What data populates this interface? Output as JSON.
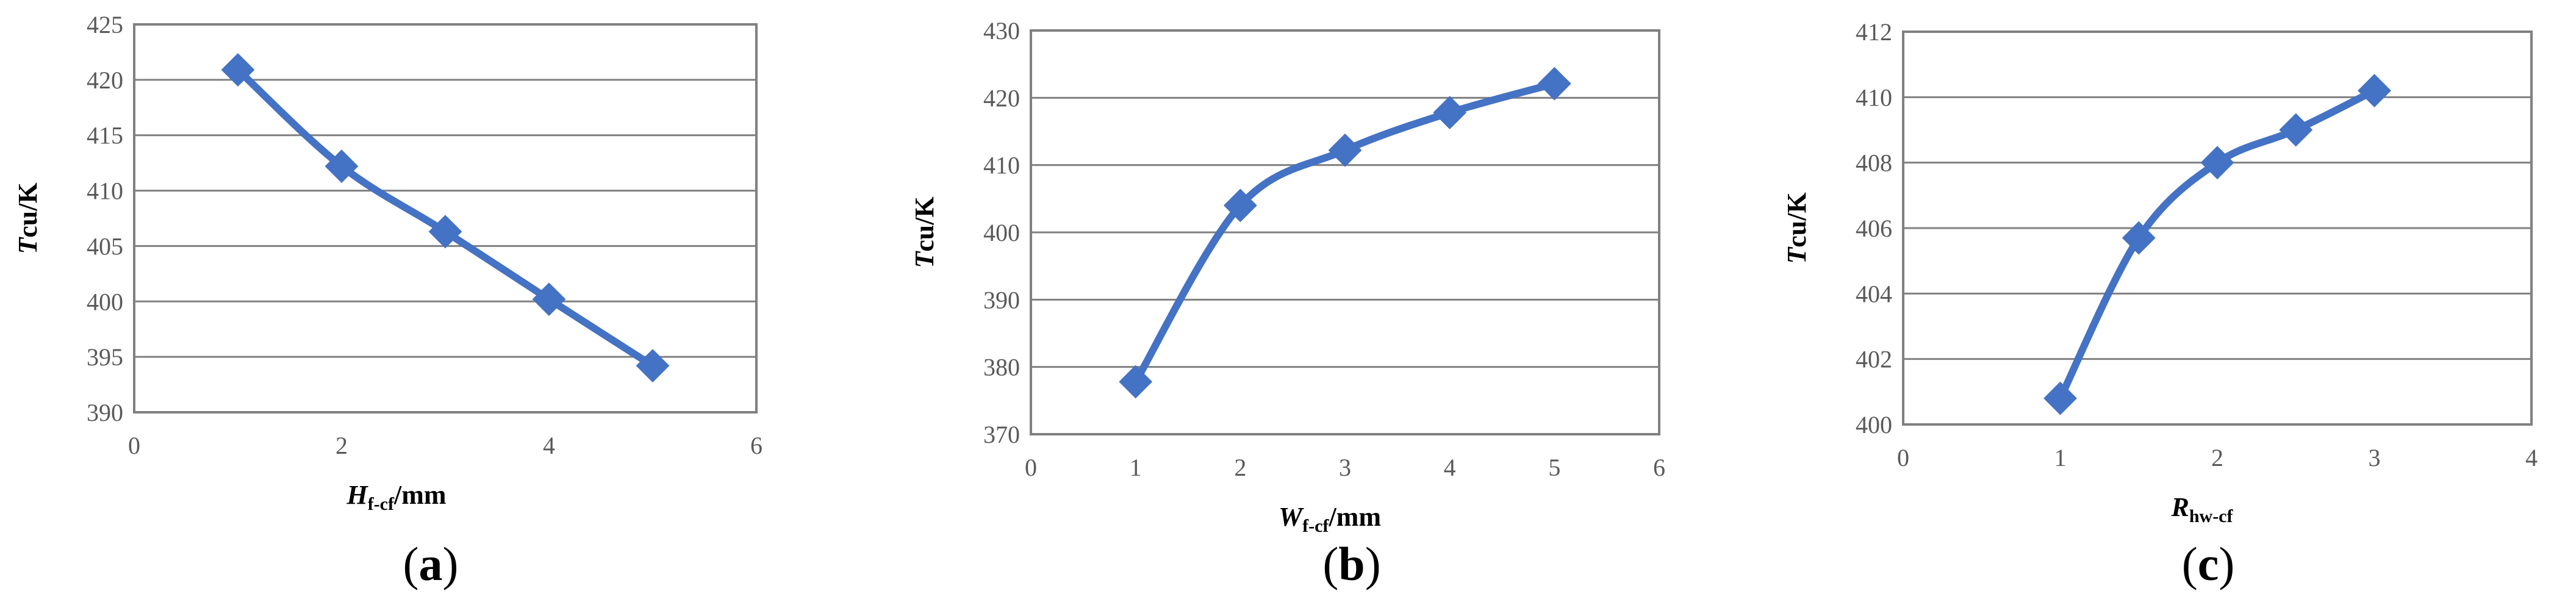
{
  "chart_data": [
    {
      "type": "line",
      "panel_label": "a",
      "xlabel": {
        "main": "H",
        "sub": "f-cf",
        "suffix": "/mm",
        "italic_main": true
      },
      "ylabel": {
        "main": "T",
        "sub": "cu",
        "suffix": "/K"
      },
      "xlim": [
        0,
        6
      ],
      "ylim": [
        390,
        425
      ],
      "xticks": [
        "0",
        "2",
        "4",
        "6"
      ],
      "yticks": [
        "390",
        "395",
        "400",
        "405",
        "410",
        "415",
        "420",
        "425"
      ],
      "grid": "horizontal",
      "color": "#4472C4",
      "series": [
        {
          "x": [
            1,
            2,
            3,
            4,
            5
          ],
          "y": [
            420.9,
            412.2,
            406.3,
            400.2,
            394.2
          ]
        }
      ]
    },
    {
      "type": "line",
      "panel_label": "b",
      "xlabel": {
        "main": "W",
        "sub": "f-cf",
        "suffix": "/mm",
        "italic_main": true
      },
      "ylabel": {
        "main": "T",
        "sub": "cu",
        "suffix": "/K"
      },
      "xlim": [
        0,
        6
      ],
      "ylim": [
        370,
        430
      ],
      "xticks": [
        "0",
        "1",
        "2",
        "3",
        "4",
        "5",
        "6"
      ],
      "yticks": [
        "370",
        "380",
        "390",
        "400",
        "410",
        "420",
        "430"
      ],
      "grid": "horizontal",
      "color": "#4472C4",
      "series": [
        {
          "x": [
            1,
            2,
            3,
            4,
            5
          ],
          "y": [
            377.8,
            404.0,
            412.2,
            417.8,
            422.1
          ]
        }
      ]
    },
    {
      "type": "line",
      "panel_label": "c",
      "xlabel": {
        "main": "R",
        "sub": "hw-cf",
        "suffix": "",
        "italic_main": true
      },
      "ylabel": {
        "main": "T",
        "sub": "cu",
        "suffix": "/K"
      },
      "xlim": [
        0,
        4
      ],
      "ylim": [
        400,
        412
      ],
      "xticks": [
        "0",
        "1",
        "2",
        "3",
        "4"
      ],
      "yticks": [
        "400",
        "402",
        "404",
        "406",
        "408",
        "410",
        "412"
      ],
      "grid": "horizontal",
      "color": "#4472C4",
      "series": [
        {
          "x": [
            1,
            1.5,
            2,
            2.5,
            3
          ],
          "y": [
            400.8,
            405.7,
            408.0,
            409.0,
            410.2
          ]
        }
      ]
    }
  ]
}
